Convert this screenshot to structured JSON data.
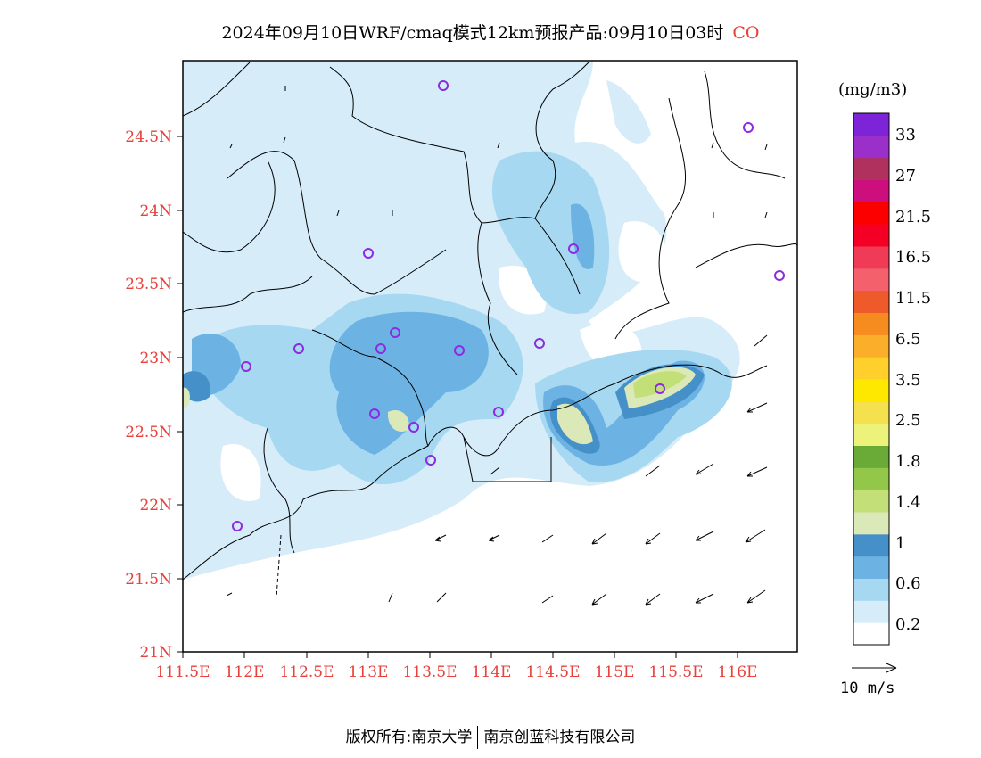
{
  "title": {
    "main": "2024年09月10日WRF/cmaq模式12km预报产品:09月10日03时",
    "species": "CO"
  },
  "axes": {
    "lat_labels": [
      "24.5N",
      "24N",
      "23.5N",
      "23N",
      "22.5N",
      "22N",
      "21.5N",
      "21N"
    ],
    "lon_labels": [
      "111.5E",
      "112E",
      "112.5E",
      "113E",
      "113.5E",
      "114E",
      "114.5E",
      "115E",
      "115.5E",
      "116E"
    ]
  },
  "colorbar": {
    "unit": "(mg/m3)",
    "labels": [
      "33",
      "27",
      "21.5",
      "16.5",
      "11.5",
      "6.5",
      "3.5",
      "2.5",
      "1.8",
      "1.4",
      "1",
      "0.6",
      "0.2"
    ],
    "colors": [
      "#ffffff",
      "#d6ecf8",
      "#a6d8f2",
      "#6cb3e3",
      "#4690c9",
      "#dbe9b8",
      "#c2df78",
      "#93c749",
      "#6aaa36",
      "#edf27a",
      "#f5e04e",
      "#ffe800",
      "#ffcf2b",
      "#fbae2a",
      "#f68b20",
      "#ef5a2b",
      "#f4606b",
      "#ef3b56",
      "#f50025",
      "#fc0000",
      "#cd0f7d",
      "#b0305e",
      "#9b2fc9",
      "#7d24d8"
    ]
  },
  "wind_reference": {
    "label": "10 m/s"
  },
  "footer": {
    "copyright": "版权所有:南京大学",
    "company": "南京创蓝科技有限公司"
  }
}
